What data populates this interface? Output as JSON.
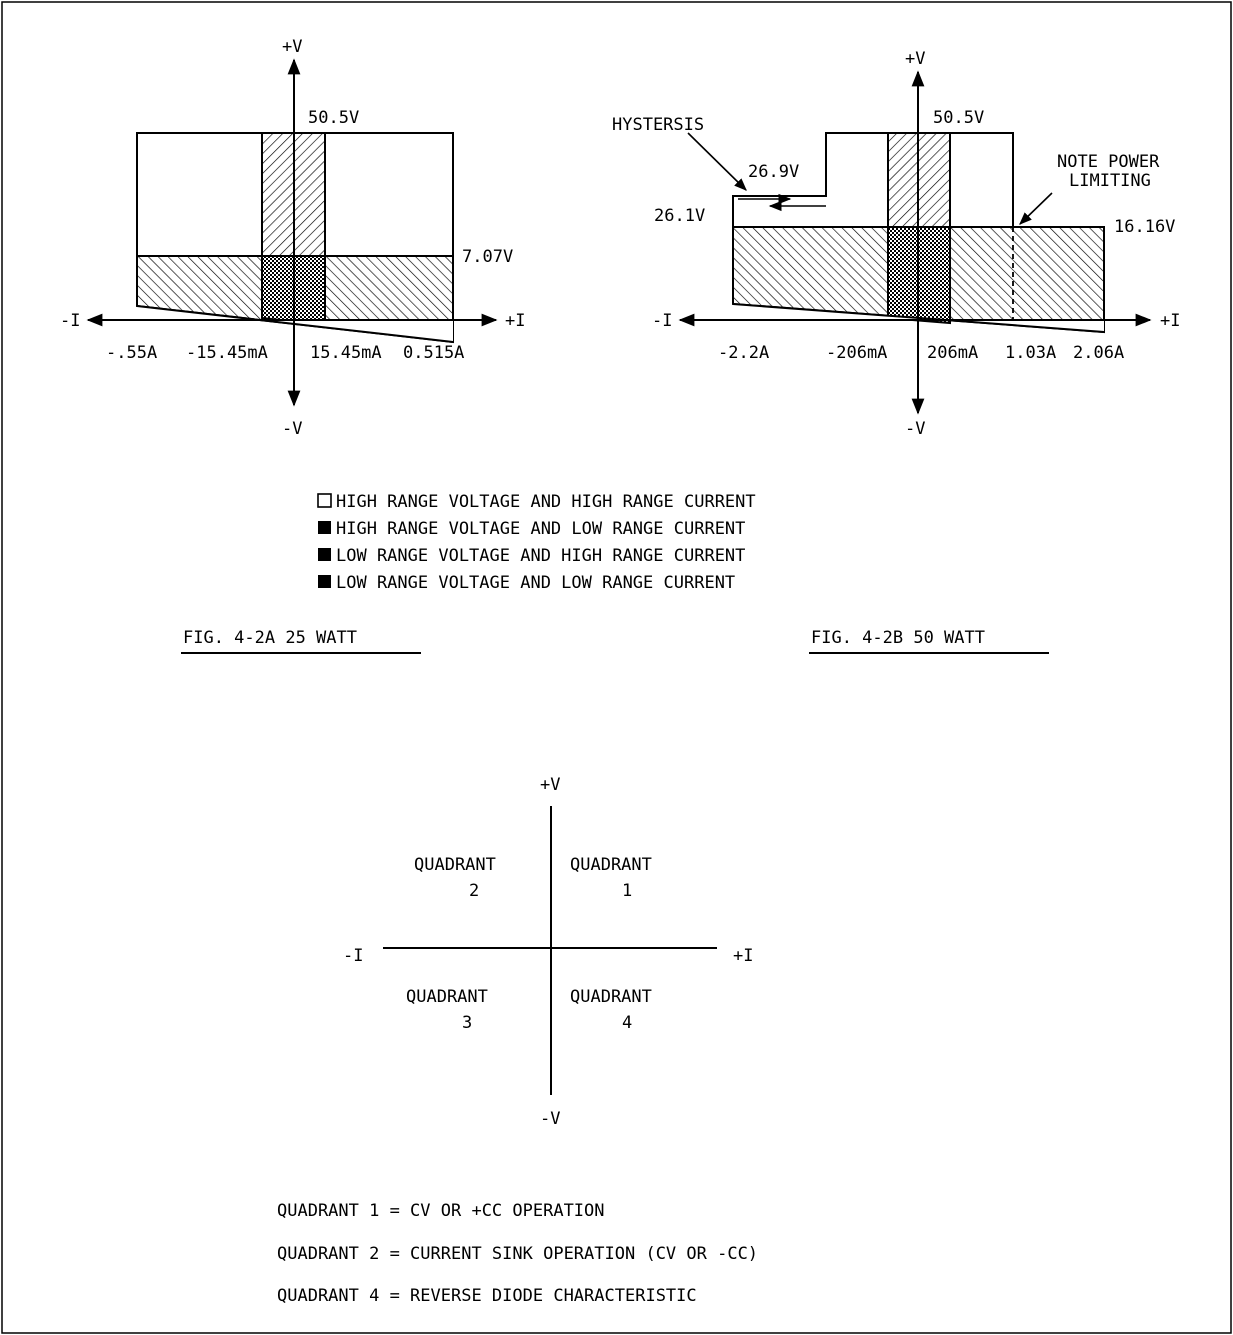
{
  "fig_a": {
    "axis": {
      "pv": "+V",
      "nv": "-V",
      "pi": "+I",
      "ni": "-I"
    },
    "labels": {
      "v_high": "50.5V",
      "v_low": "7.07V",
      "i_neg_high": "-.55A",
      "i_neg_low": "-15.45mA",
      "i_pos_low": "15.45mA",
      "i_pos_high": "0.515A"
    },
    "caption": "FIG. 4-2A 25 WATT"
  },
  "fig_b": {
    "axis": {
      "pv": "+V",
      "nv": "-V",
      "pi": "+I",
      "ni": "-I"
    },
    "labels": {
      "v_high": "50.5V",
      "hysteresis": "HYSTERSIS",
      "v_hyst_upper": "26.9V",
      "v_hyst_lower": "26.1V",
      "note_line1": "NOTE POWER",
      "note_line2": "LIMITING",
      "v_low": "16.16V",
      "i_neg_high": "-2.2A",
      "i_neg_low": "-206mA",
      "i_pos_low": "206mA",
      "i_pos_mid": "1.03A",
      "i_pos_high": "2.06A"
    },
    "caption": "FIG. 4-2B 50 WATT"
  },
  "legend": [
    "HIGH RANGE VOLTAGE AND HIGH RANGE CURRENT",
    "HIGH RANGE VOLTAGE AND LOW RANGE CURRENT",
    "LOW RANGE VOLTAGE AND HIGH RANGE CURRENT",
    "LOW RANGE VOLTAGE AND LOW RANGE CURRENT"
  ],
  "quadrant_diagram": {
    "axis": {
      "pv": "+V",
      "nv": "-V",
      "pi": "+I",
      "ni": "-I"
    },
    "q1": {
      "word": "QUADRANT",
      "num": "1"
    },
    "q2": {
      "word": "QUADRANT",
      "num": "2"
    },
    "q3": {
      "word": "QUADRANT",
      "num": "3"
    },
    "q4": {
      "word": "QUADRANT",
      "num": "4"
    }
  },
  "notes": [
    "QUADRANT 1 = CV OR +CC OPERATION",
    "QUADRANT 2 = CURRENT SINK OPERATION (CV OR -CC)",
    "QUADRANT 4 = REVERSE DIODE CHARACTERISTIC"
  ]
}
